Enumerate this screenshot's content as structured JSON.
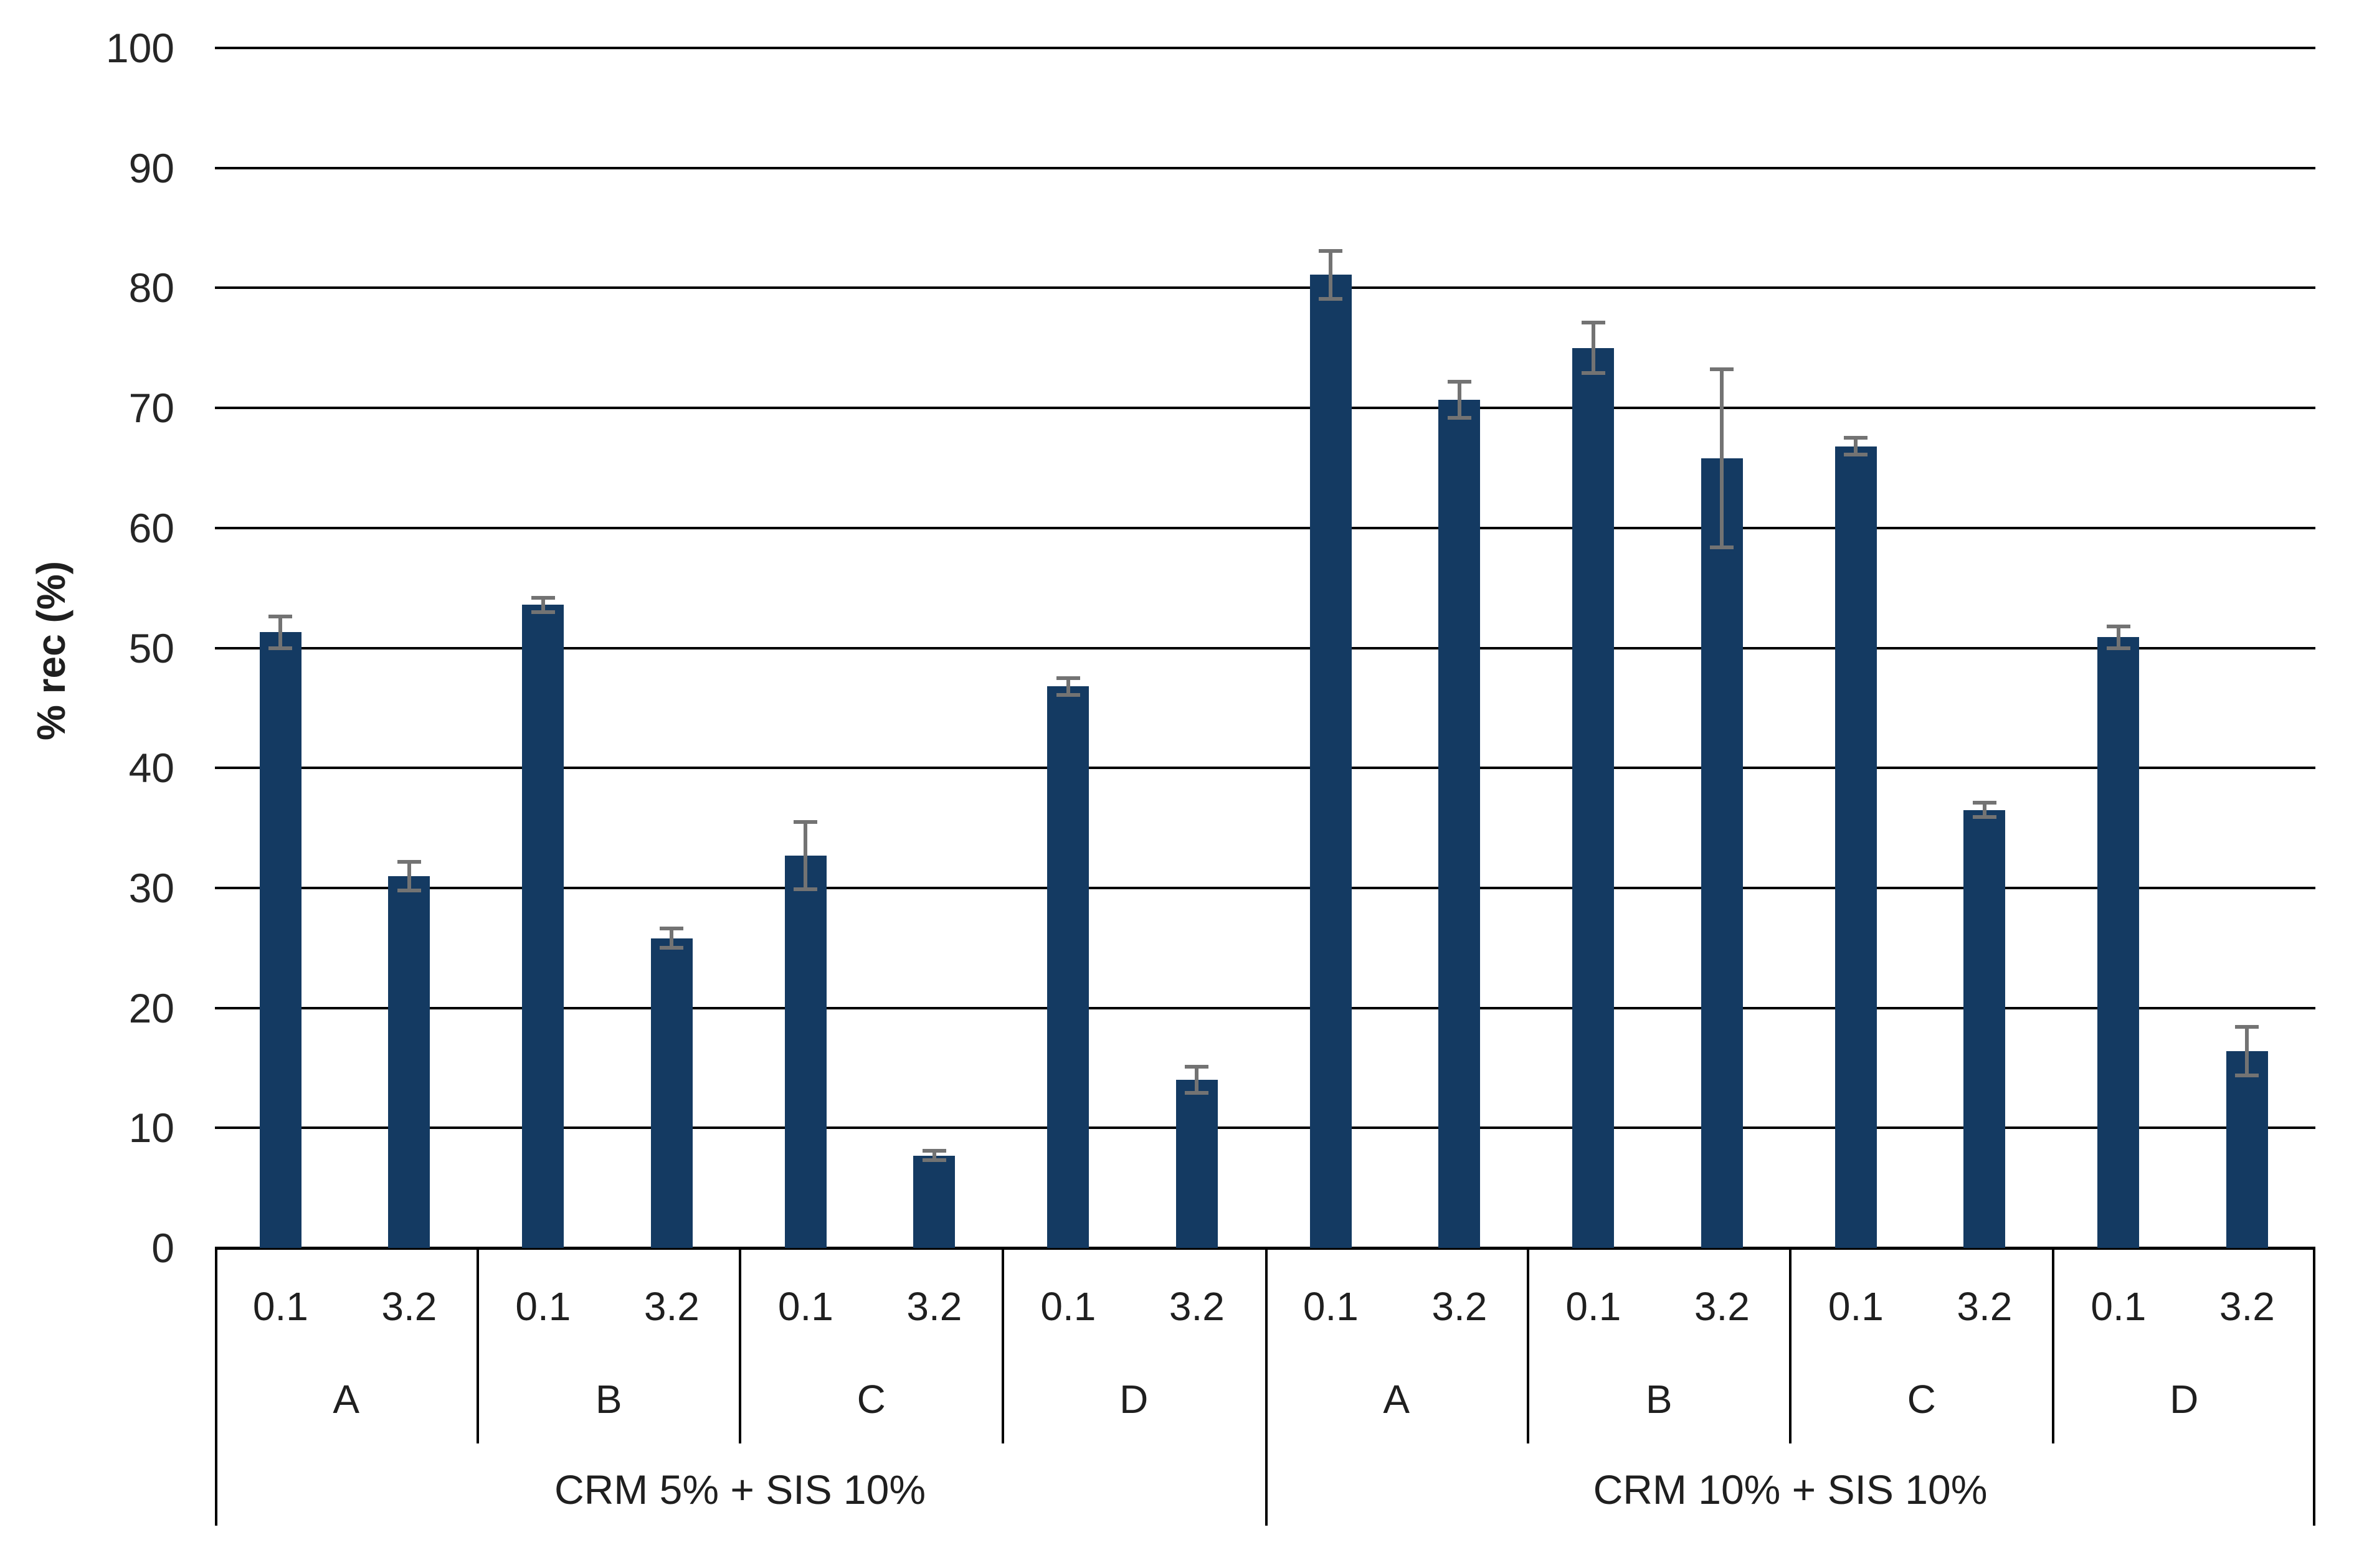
{
  "chart_data": {
    "type": "bar",
    "title": "",
    "xlabel": "",
    "ylabel": "% rec (%)",
    "ylim": [
      0,
      100
    ],
    "ytick_step": 10,
    "yticks": [
      0,
      10,
      20,
      30,
      40,
      50,
      60,
      70,
      80,
      90,
      100
    ],
    "grid": "horizontal-black-lines",
    "legend": "none",
    "bar_color": "#143A62",
    "error_bar_color": "#737373",
    "axis_text_color": "#262626",
    "doses": [
      "0.1",
      "3.2"
    ],
    "groups": [
      {
        "label": "CRM 5% + SIS 10%",
        "letters": [
          {
            "letter": "A",
            "bars": [
              {
                "dose": "0.1",
                "value": 51.3,
                "error": 1.3
              },
              {
                "dose": "3.2",
                "value": 31.0,
                "error": 1.2
              }
            ]
          },
          {
            "letter": "B",
            "bars": [
              {
                "dose": "0.1",
                "value": 53.6,
                "error": 0.6
              },
              {
                "dose": "3.2",
                "value": 25.8,
                "error": 0.8
              }
            ]
          },
          {
            "letter": "C",
            "bars": [
              {
                "dose": "0.1",
                "value": 32.7,
                "error": 2.8
              },
              {
                "dose": "3.2",
                "value": 7.7,
                "error": 0.4
              }
            ]
          },
          {
            "letter": "D",
            "bars": [
              {
                "dose": "0.1",
                "value": 46.8,
                "error": 0.7
              },
              {
                "dose": "3.2",
                "value": 14.0,
                "error": 1.1
              }
            ]
          }
        ]
      },
      {
        "label": "CRM 10% + SIS 10%",
        "letters": [
          {
            "letter": "A",
            "bars": [
              {
                "dose": "0.1",
                "value": 81.1,
                "error": 2.0
              },
              {
                "dose": "3.2",
                "value": 70.7,
                "error": 1.5
              }
            ]
          },
          {
            "letter": "B",
            "bars": [
              {
                "dose": "0.1",
                "value": 75.0,
                "error": 2.1
              },
              {
                "dose": "3.2",
                "value": 65.8,
                "error": 7.4
              }
            ]
          },
          {
            "letter": "C",
            "bars": [
              {
                "dose": "0.1",
                "value": 66.8,
                "error": 0.7
              },
              {
                "dose": "3.2",
                "value": 36.5,
                "error": 0.6
              }
            ]
          },
          {
            "letter": "D",
            "bars": [
              {
                "dose": "0.1",
                "value": 50.9,
                "error": 0.9
              },
              {
                "dose": "3.2",
                "value": 16.4,
                "error": 2.0
              }
            ]
          }
        ]
      }
    ]
  }
}
